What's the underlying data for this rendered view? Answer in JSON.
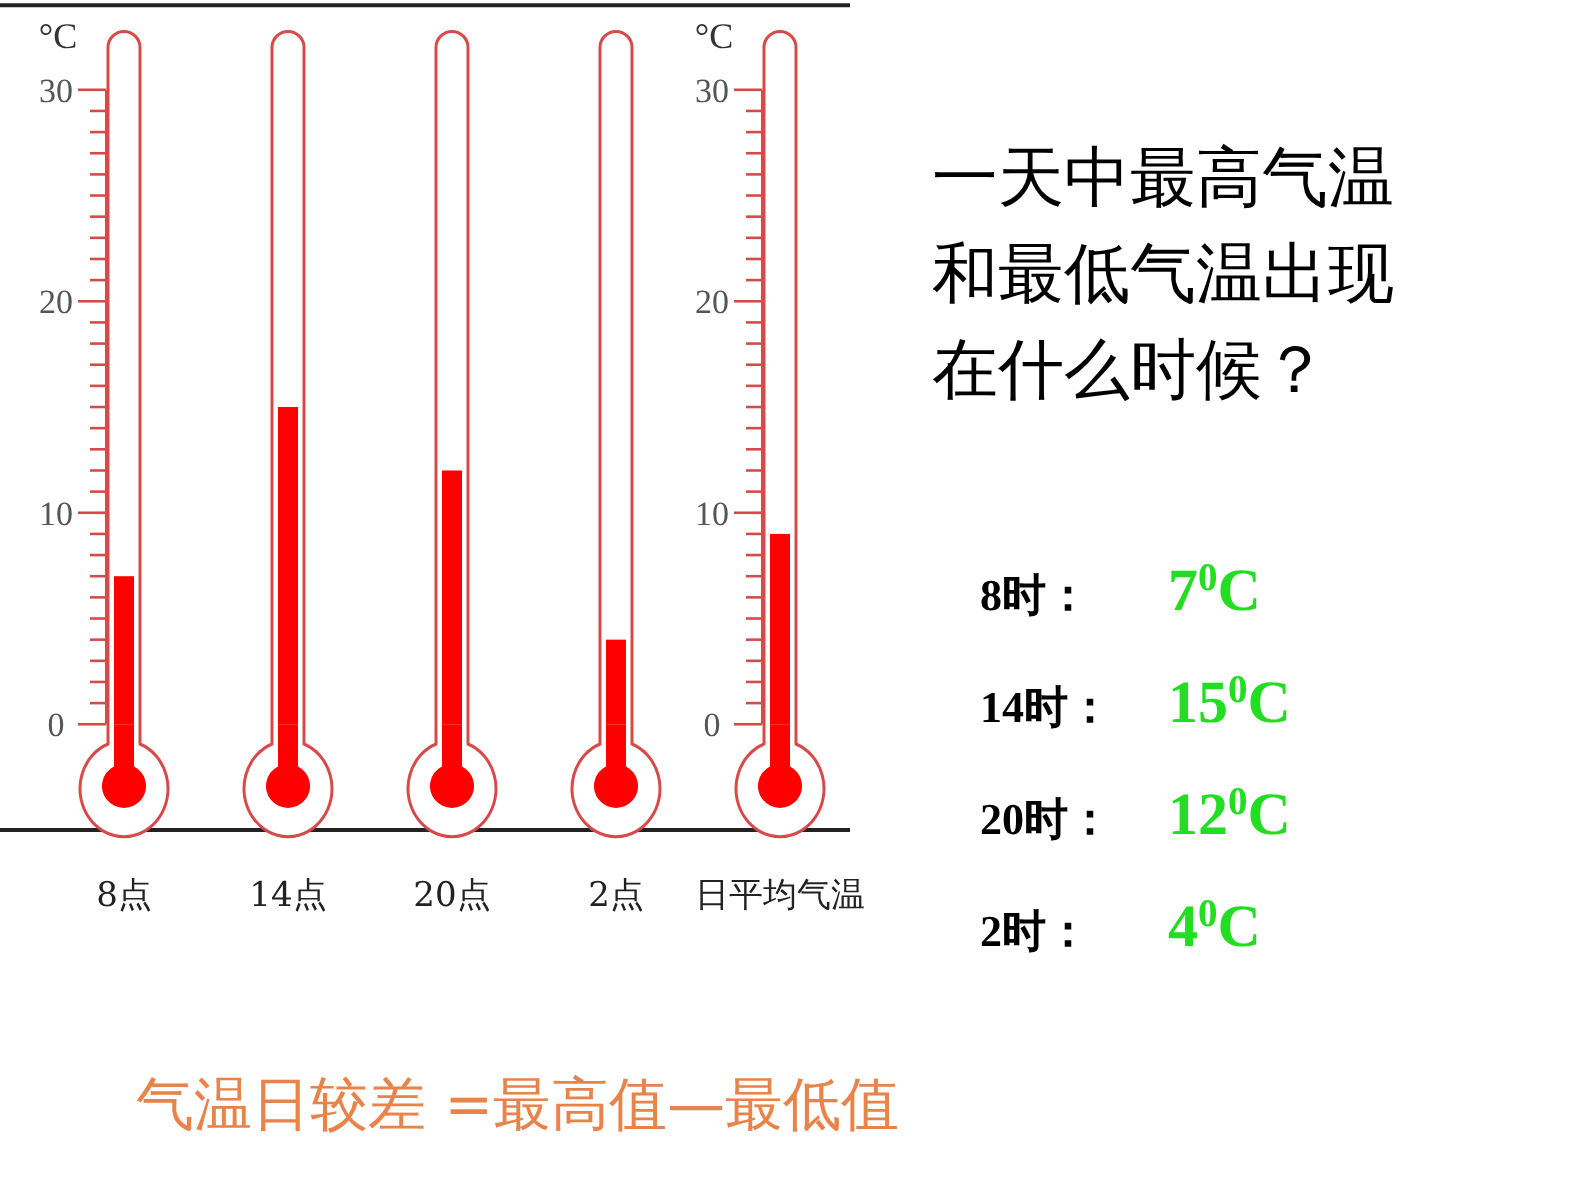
{
  "chart_data": {
    "type": "bar",
    "title": "一天中最高气温和最低气温出现在什么时候？",
    "ylabel": "°C",
    "y2label": "°C",
    "categories": [
      "8点",
      "14点",
      "20点",
      "2点",
      "日平均气温"
    ],
    "values": [
      7,
      15,
      12,
      4,
      9
    ],
    "color": "#ff0000",
    "ylim": [
      -5,
      34
    ],
    "yticks": [
      0,
      10,
      20,
      30
    ],
    "y2lim": [
      -5,
      34
    ],
    "y2ticks": [
      0,
      10,
      20,
      30
    ],
    "annotations": [
      "8时：",
      "7$^{0}$C",
      "14时：",
      "15$^{0}$C",
      "20时：",
      "12$^{0}$C",
      "2时：",
      "4$^{0}$C",
      "气温日较差 =最高值—最低值"
    ]
  }
}
